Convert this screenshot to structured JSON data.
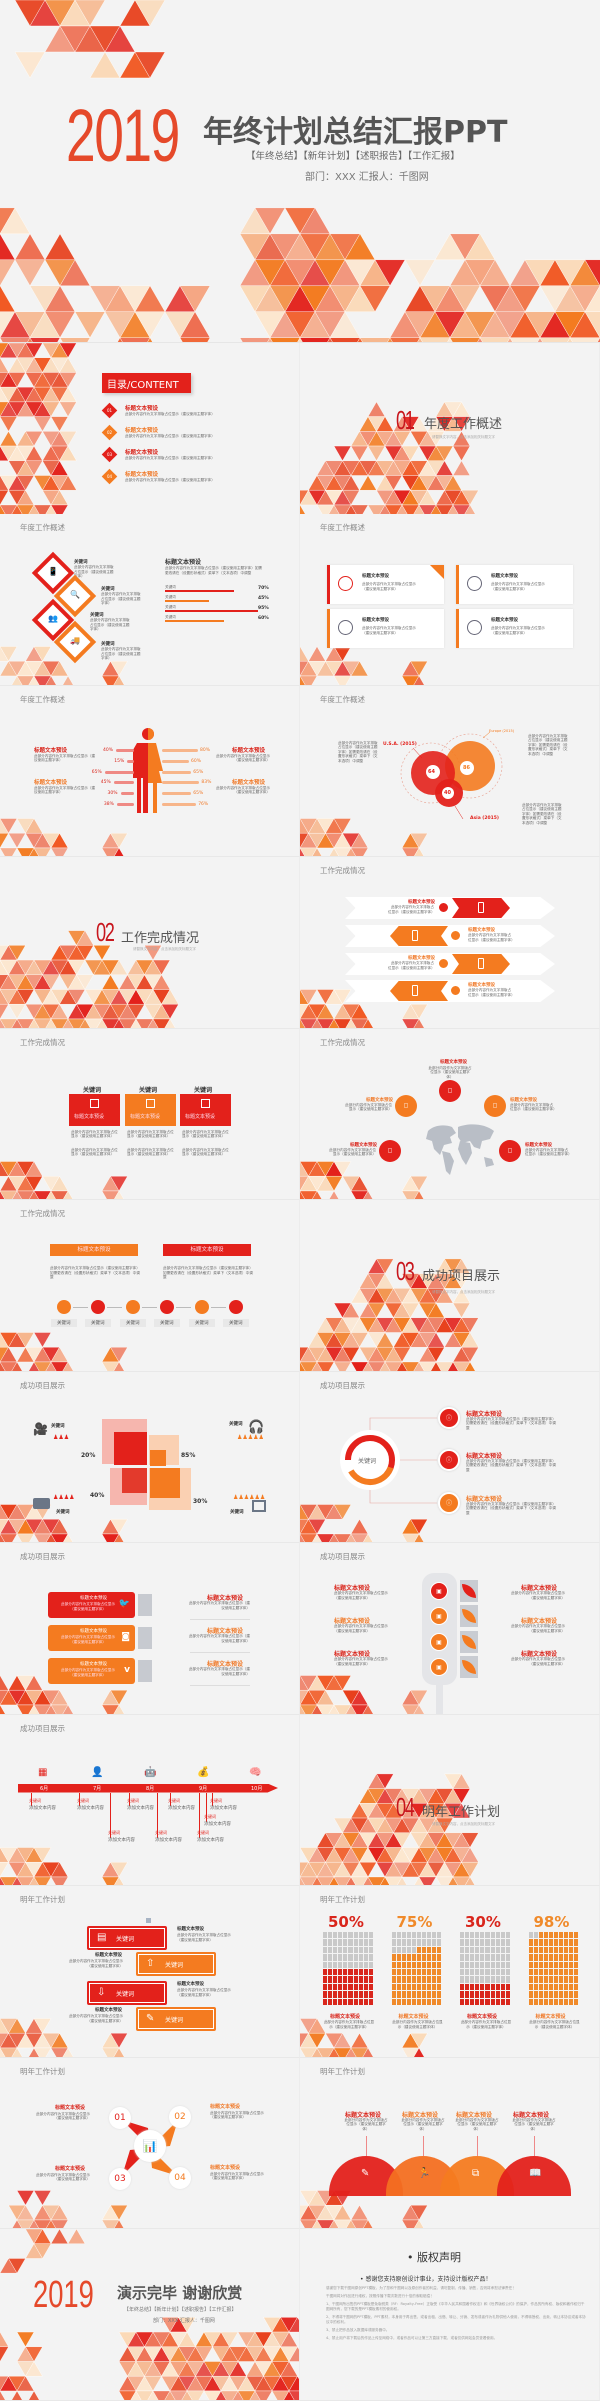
{
  "cover": {
    "year": "2019",
    "title": "年终计划总结汇报PPT",
    "tags": "【年终总结】【新年计划】【述职报告】【工作汇报】",
    "meta": "部门：XXX  汇报人：千图网"
  },
  "colors": {
    "red": "#e3211b",
    "orange": "#f47b20",
    "light": "#f6a37e",
    "pink": "#e8365a",
    "peach": "#fbd9b7",
    "background": "#f3f3f3"
  },
  "common": {
    "title_preset": "标题文本预设",
    "keyword": "关键词",
    "desc": "此部分内容作为文字排版占位显示（建议使用主题字体）",
    "desc_long": "此部分内容作为文字排版占位显示（建议使用主题字体）如需更改请在（设置形状格式）菜单下（文本选项）中调整",
    "add_text": "添加文本内容"
  },
  "contents": {
    "heading": "目录/CONTENT",
    "items": [
      {
        "num": "01",
        "title": "标题文本预设"
      },
      {
        "num": "02",
        "title": "标题文本预设"
      },
      {
        "num": "03",
        "title": "标题文本预设"
      },
      {
        "num": "04",
        "title": "标题文本预设"
      }
    ]
  },
  "sections": [
    {
      "num": "01",
      "title": "年度工作概述",
      "sub": "请替换文字内容，点击添加相关标题文字"
    },
    {
      "num": "02",
      "title": "工作完成情况",
      "sub": "请替换文字内容，点击添加相关标题文字"
    },
    {
      "num": "03",
      "title": "成功项目展示",
      "sub": "请替换文字内容，点击添加相关标题文字"
    },
    {
      "num": "04",
      "title": "明年工作计划",
      "sub": "请替换文字内容，点击添加相关标题文字"
    }
  ],
  "bars": {
    "title": "标题文本预设",
    "items": [
      {
        "label": "关键词",
        "value": 70,
        "text": "70%"
      },
      {
        "label": "关键词",
        "value": 45,
        "text": "45%"
      },
      {
        "label": "关键词",
        "value": 95,
        "text": "95%"
      },
      {
        "label": "关键词",
        "value": 60,
        "text": "60%"
      }
    ]
  },
  "person": {
    "left": [
      40,
      15,
      65,
      45,
      30,
      38
    ],
    "right": [
      80,
      60,
      65,
      83,
      65,
      76
    ],
    "left_text": [
      "40%",
      "15%",
      "65%",
      "45%",
      "30%",
      "38%"
    ],
    "right_text": [
      "80%",
      "60%",
      "65%",
      "83%",
      "65%",
      "76%"
    ]
  },
  "venn": {
    "items": [
      {
        "label": "U.S.A. (2015)",
        "value": "64"
      },
      {
        "label": "Europe (2015)",
        "value": "86"
      },
      {
        "label": "Asia (2015)",
        "value": "40"
      }
    ]
  },
  "squares": {
    "values": [
      "20%",
      "85%",
      "40%",
      "30%"
    ]
  },
  "donut": {
    "center": "关键词"
  },
  "timeline": {
    "months": [
      "6月",
      "7月",
      "8月",
      "9月",
      "10月"
    ]
  },
  "waffle": {
    "items": [
      {
        "value": 50,
        "text": "50%",
        "color": "#d9261c"
      },
      {
        "value": 75,
        "text": "75%",
        "color": "#f08a2a"
      },
      {
        "value": 30,
        "text": "30%",
        "color": "#d9261c"
      },
      {
        "value": 98,
        "text": "98%",
        "color": "#f08a2a"
      }
    ]
  },
  "numbers": [
    "01",
    "02",
    "03",
    "04"
  ],
  "end": {
    "year": "2019",
    "title": "演示完毕 谢谢欣赏",
    "tags": "【年终总结】【新年计划】【述职报告】【工作汇报】",
    "meta": "部门：XXX  汇报人：千图网"
  },
  "copyright": {
    "title": "版权声明",
    "subtitle": "感谢您支持原创设计事业，支持设计版权产品！",
    "items": [
      "感谢您下载千图网原创PPT模板，为了您和千图网以及原创作者的利益，请勿复制、传播、销售，否则将承担法律责任！",
      "千图网将对作品进行维权，按照传播下载次数进行十倍的索取赔偿！",
      "1、千图网所出售的PPT模板是免版税类（RF：Royalty-Free）正版受《中华人民共和国著作权法》和《世界版权公约》的保护，作品的所有权、版权和著作权归千图网所有，您下载的是PPT模板素材的使用权。",
      "2、不得将千图网的PPT模板、PPT素材，本身用于再出售，或者出租、出借、转让、分销、发布或者作为礼物供他人使用，不得转授权、出卖、转让本协议或者本协议中的权利。",
      "3、禁止把作品放入数据库或服务器中。",
      "4、禁止用户将下载后的作品上传至网络中，或者作品可以让第三方直接下载，或者仅供网站会员查看使用。"
    ]
  }
}
